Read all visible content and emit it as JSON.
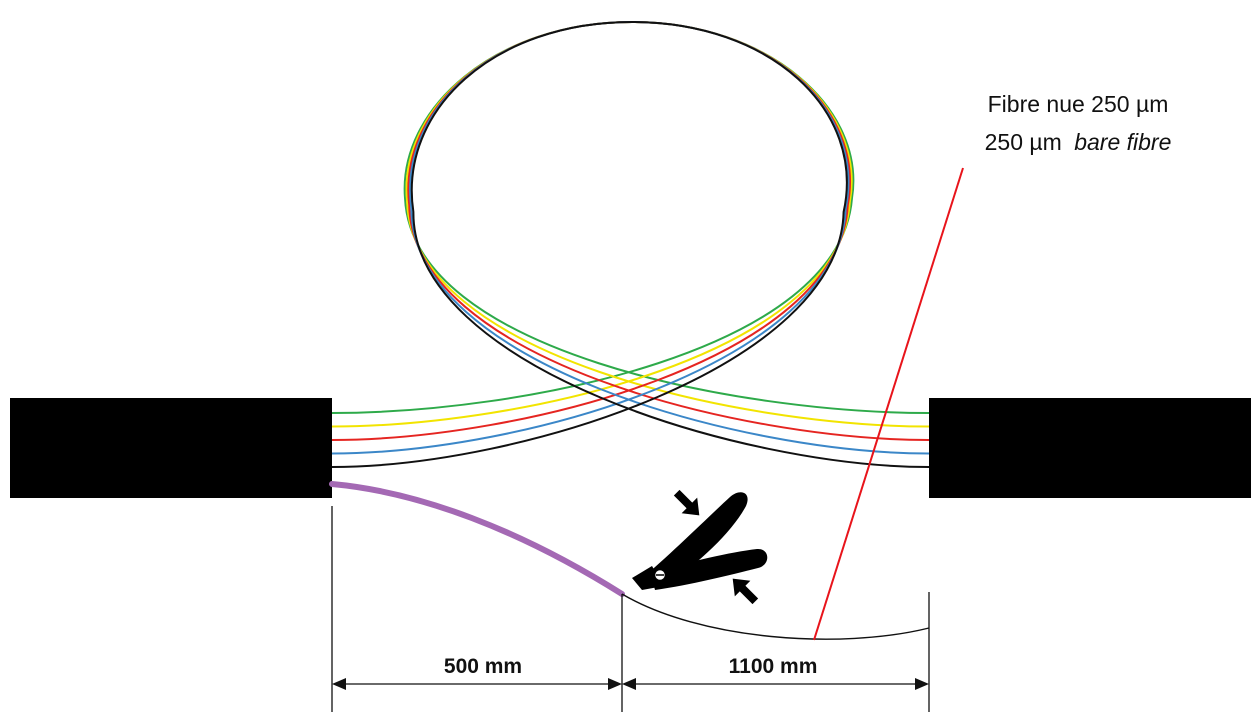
{
  "diagram": {
    "callout": {
      "line1": "Fibre nue 250 µm",
      "line2_prefix": "250 µm",
      "line2_italic": "bare fibre"
    },
    "dimensions": [
      {
        "label": "500 mm"
      },
      {
        "label": "1100 mm"
      }
    ],
    "fibres": [
      {
        "name": "green",
        "color": "#2eaa4a"
      },
      {
        "name": "yellow",
        "color": "#f2e400"
      },
      {
        "name": "red",
        "color": "#e52521"
      },
      {
        "name": "blue",
        "color": "#3b87c8"
      },
      {
        "name": "black",
        "color": "#111111"
      }
    ],
    "colors": {
      "cable": "#000000",
      "extracted_fibre": "#a469b4",
      "callout_line": "#e8141b",
      "dimension_line": "#111111",
      "tool": "#000000"
    },
    "icons": {
      "tool": "fibre-stripper-icon",
      "arrows": "press-arrow-icon"
    }
  }
}
